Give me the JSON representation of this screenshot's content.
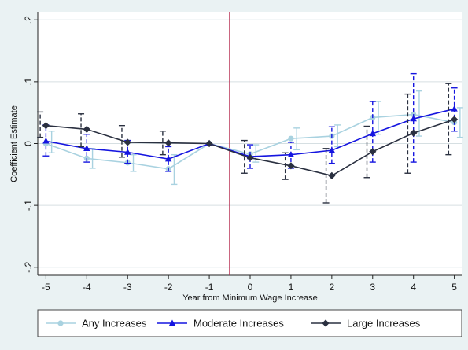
{
  "chart_data": {
    "type": "line",
    "title": "",
    "xlabel": "Year from Minimum Wage Increase",
    "ylabel": "Coefficient Estimate",
    "x": [
      -5,
      -4,
      -3,
      -2,
      -1,
      0,
      1,
      2,
      3,
      4,
      5
    ],
    "xticks": [
      "-5",
      "-4",
      "-3",
      "-2",
      "-1",
      "0",
      "1",
      "2",
      "3",
      "4",
      "5"
    ],
    "yticks": [
      {
        "value": 0.2,
        "label": ".2"
      },
      {
        "value": 0.1,
        "label": ".1"
      },
      {
        "value": 0,
        "label": "0"
      },
      {
        "value": -0.1,
        "label": "-.1"
      },
      {
        "value": -0.2,
        "label": "-.2"
      }
    ],
    "xlim": [
      -5.2,
      5.2
    ],
    "ylim": [
      -0.213,
      0.213
    ],
    "vline_x": -0.5,
    "vline_color": "#b5294e",
    "grid": "horizontal",
    "legend_position": "bottom",
    "series": [
      {
        "name": "Any Increases",
        "color": "#a9d2e0",
        "marker": "circle",
        "dash": "solid",
        "values": [
          0.0,
          -0.024,
          -0.031,
          -0.041,
          0.0,
          -0.017,
          0.008,
          0.012,
          0.042,
          0.047,
          0.034
        ],
        "ci_low": [
          -0.015,
          -0.04,
          -0.045,
          -0.066,
          0.0,
          -0.03,
          -0.01,
          -0.005,
          0.015,
          0.012,
          0.01
        ],
        "ci_high": [
          0.02,
          -0.008,
          -0.018,
          -0.018,
          0.0,
          -0.002,
          0.025,
          0.03,
          0.068,
          0.085,
          0.058
        ]
      },
      {
        "name": "Moderate Increases",
        "color": "#1515e0",
        "marker": "triangle",
        "dash": "dashed",
        "values": [
          0.004,
          -0.008,
          -0.014,
          -0.025,
          0.0,
          -0.021,
          -0.018,
          -0.011,
          0.016,
          0.04,
          0.056
        ],
        "ci_low": [
          -0.02,
          -0.03,
          -0.032,
          -0.045,
          0.0,
          -0.04,
          -0.04,
          -0.032,
          -0.03,
          -0.03,
          0.02
        ],
        "ci_high": [
          0.03,
          0.015,
          0.005,
          -0.005,
          0.0,
          -0.002,
          0.002,
          0.027,
          0.068,
          0.113,
          0.09
        ]
      },
      {
        "name": "Large Increases",
        "color": "#2a3040",
        "marker": "diamond",
        "dash": "dashed",
        "values": [
          0.029,
          0.023,
          0.002,
          0.001,
          0.0,
          -0.023,
          -0.036,
          -0.052,
          -0.013,
          0.017,
          0.039
        ],
        "ci_low": [
          0.01,
          -0.005,
          -0.022,
          -0.018,
          0.0,
          -0.048,
          -0.058,
          -0.096,
          -0.055,
          -0.048,
          -0.018
        ],
        "ci_high": [
          0.051,
          0.048,
          0.029,
          0.02,
          0.0,
          0.005,
          -0.015,
          -0.008,
          0.028,
          0.08,
          0.097
        ]
      }
    ]
  }
}
